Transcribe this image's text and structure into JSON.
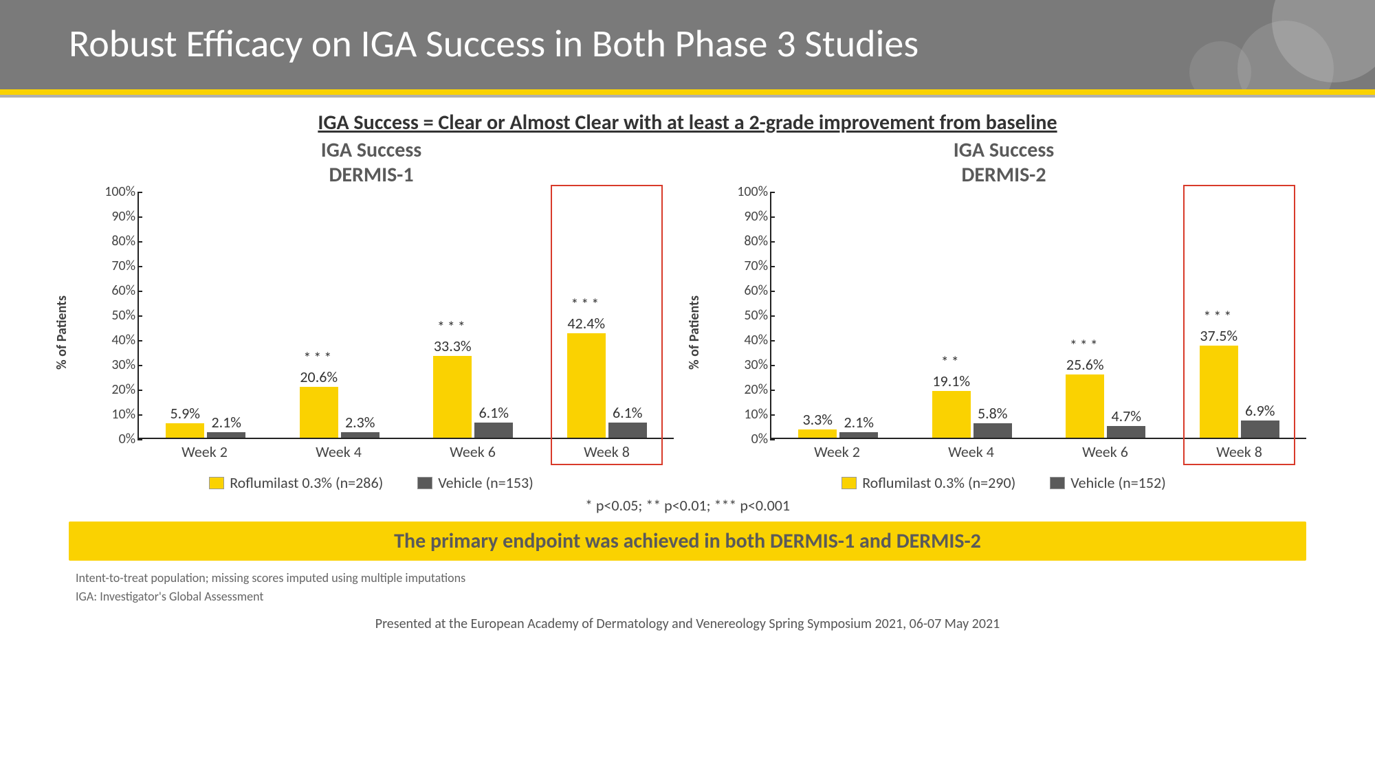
{
  "colors": {
    "header_bg": "#7a7a7a",
    "accent_yellow": "#fad201",
    "series_roflumilast": "#fad201",
    "series_vehicle": "#5a5a5a",
    "highlight_border": "#d83a2a",
    "axis": "#222222",
    "text_title": "#ffffff",
    "text_body": "#5a5a5a"
  },
  "title": "Robust Efficacy on IGA Success in Both Phase 3 Studies",
  "definition": "IGA Success = Clear or Almost Clear with at least a 2-grade improvement from baseline",
  "y_axis_label": "% of  Patients",
  "y_ticks": [
    "0%",
    "10%",
    "20%",
    "30%",
    "40%",
    "50%",
    "60%",
    "70%",
    "80%",
    "90%",
    "100%"
  ],
  "y_max": 100,
  "charts": [
    {
      "title_line1": "IGA Success",
      "title_line2": "DERMIS-1",
      "legend_a": "Roflumilast 0.3% (n=286)",
      "legend_b": "Vehicle (n=153)",
      "categories": [
        "Week 2",
        "Week 4",
        "Week 6",
        "Week 8"
      ],
      "highlight_index": 3,
      "series_a": [
        {
          "value": 5.9,
          "label": "5.9%",
          "sig": ""
        },
        {
          "value": 20.6,
          "label": "20.6%",
          "sig": "***"
        },
        {
          "value": 33.3,
          "label": "33.3%",
          "sig": "***"
        },
        {
          "value": 42.4,
          "label": "42.4%",
          "sig": "***"
        }
      ],
      "series_b": [
        {
          "value": 2.1,
          "label": "2.1%"
        },
        {
          "value": 2.3,
          "label": "2.3%"
        },
        {
          "value": 6.1,
          "label": "6.1%"
        },
        {
          "value": 6.1,
          "label": "6.1%"
        }
      ]
    },
    {
      "title_line1": "IGA Success",
      "title_line2": "DERMIS-2",
      "legend_a": "Roflumilast 0.3% (n=290)",
      "legend_b": "Vehicle (n=152)",
      "categories": [
        "Week 2",
        "Week 4",
        "Week 6",
        "Week 8"
      ],
      "highlight_index": 3,
      "series_a": [
        {
          "value": 3.3,
          "label": "3.3%",
          "sig": ""
        },
        {
          "value": 19.1,
          "label": "19.1%",
          "sig": "**"
        },
        {
          "value": 25.6,
          "label": "25.6%",
          "sig": "***"
        },
        {
          "value": 37.5,
          "label": "37.5%",
          "sig": "***"
        }
      ],
      "series_b": [
        {
          "value": 2.1,
          "label": "2.1%"
        },
        {
          "value": 5.8,
          "label": "5.8%"
        },
        {
          "value": 4.7,
          "label": "4.7%"
        },
        {
          "value": 6.9,
          "label": "6.9%"
        }
      ]
    }
  ],
  "p_note": "* p<0.05; ** p<0.01; *** p<0.001",
  "callout": "The primary endpoint was achieved in both DERMIS-1 and DERMIS-2",
  "footnote1": "Intent-to-treat population; missing scores imputed using multiple imputations",
  "footnote2": "IGA: Investigator's Global Assessment",
  "presented": "Presented at the European Academy of Dermatology and Venereology Spring Symposium 2021, 06-07 May 2021"
}
